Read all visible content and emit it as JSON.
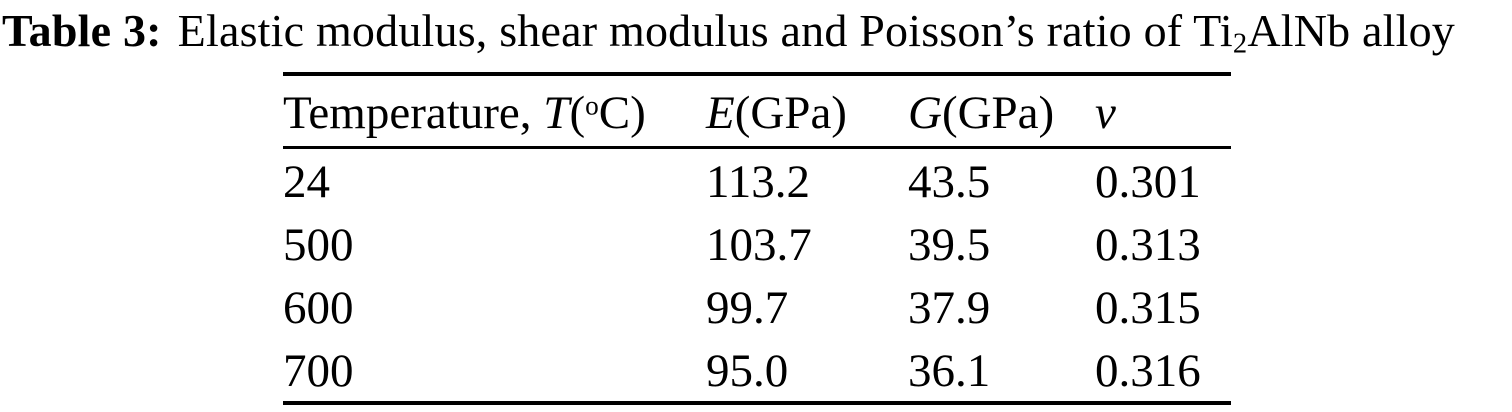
{
  "caption": {
    "label": "Table 3:",
    "text": "Elastic modulus, shear modulus and Poisson’s ratio of Ti",
    "subscript": "2",
    "suffix": "AlNb alloy"
  },
  "table": {
    "headers": [
      {
        "pre": "Temperature, ",
        "sym": "T",
        "open": "(",
        "sup": "o",
        "close": "C)"
      },
      {
        "pre": "",
        "sym": "E",
        "open": "(GPa)",
        "sup": "",
        "close": ""
      },
      {
        "pre": "",
        "sym": "G",
        "open": "(GPa)",
        "sup": "",
        "close": ""
      },
      {
        "pre": "",
        "sym": "ν",
        "open": "",
        "sup": "",
        "close": ""
      }
    ],
    "rows": [
      [
        "24",
        "113.2",
        "43.5",
        "0.301"
      ],
      [
        "500",
        "103.7",
        "39.5",
        "0.313"
      ],
      [
        "600",
        "99.7",
        "37.9",
        "0.315"
      ],
      [
        "700",
        "95.0",
        "36.1",
        "0.316"
      ]
    ]
  },
  "colors": {
    "text": "#000000",
    "background": "#ffffff",
    "rule": "#000000"
  },
  "chart_data": {
    "type": "table",
    "title": "Table 3: Elastic modulus, shear modulus and Poisson's ratio of Ti2AlNb alloy",
    "columns": [
      "Temperature, T(°C)",
      "E(GPa)",
      "G(GPa)",
      "ν"
    ],
    "rows": [
      [
        24,
        113.2,
        43.5,
        0.301
      ],
      [
        500,
        103.7,
        39.5,
        0.313
      ],
      [
        600,
        99.7,
        37.9,
        0.315
      ],
      [
        700,
        95.0,
        36.1,
        0.316
      ]
    ]
  }
}
